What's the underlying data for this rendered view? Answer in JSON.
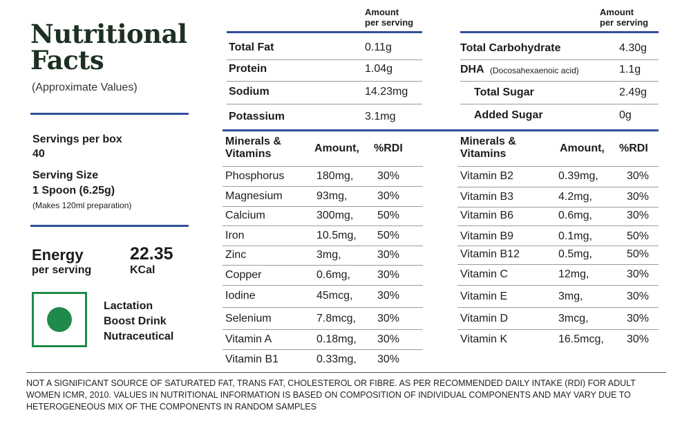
{
  "header": {
    "title_line1": "Nutritional",
    "title_line2": "Facts",
    "subtitle": "(Approximate Values)"
  },
  "servings": {
    "per_box_label": "Servings per box",
    "per_box_value": "40",
    "size_label": "Serving Size",
    "size_value": "1 Spoon (6.25g)",
    "size_note": "(Makes 120ml preparation)"
  },
  "energy": {
    "label": "Energy",
    "sublabel": "per serving",
    "value": "22.35",
    "unit": "KCal"
  },
  "product": {
    "line1": "Lactation",
    "line2": "Boost Drink",
    "line3": "Nutraceutical",
    "veg_color": "#1f8a4c"
  },
  "macros_left": {
    "header_line1": "Amount",
    "header_line2": "per serving",
    "rows": [
      {
        "name": "Total Fat",
        "value": "0.11g"
      },
      {
        "name": "Protein",
        "value": "1.04g"
      },
      {
        "name": "Sodium",
        "value": "14.23mg"
      },
      {
        "name": "Potassium",
        "value": "3.1mg"
      }
    ]
  },
  "macros_right": {
    "header_line1": "Amount",
    "header_line2": "per serving",
    "rows": [
      {
        "name": "Total Carbohydrate",
        "note": "",
        "value": "4.30g"
      },
      {
        "name": "DHA",
        "note": "(Docosahexaenoic acid)",
        "value": "1.1g"
      },
      {
        "name": "Total Sugar",
        "note": "",
        "value": "2.49g"
      },
      {
        "name": "Added Sugar",
        "note": "",
        "value": "0g"
      }
    ]
  },
  "minerals_left": {
    "header_name_line1": "Minerals &",
    "header_name_line2": "Vitamins",
    "header_amount": "Amount,",
    "header_rdi": "%RDI",
    "rows": [
      {
        "name": "Phosphorus",
        "amount": "180mg,",
        "rdi": "30%"
      },
      {
        "name": "Magnesium",
        "amount": "93mg,",
        "rdi": "30%"
      },
      {
        "name": "Calcium",
        "amount": "300mg,",
        "rdi": "50%"
      },
      {
        "name": "Iron",
        "amount": "10.5mg,",
        "rdi": "50%"
      },
      {
        "name": "Zinc",
        "amount": "3mg,",
        "rdi": "30%"
      },
      {
        "name": "Copper",
        "amount": "0.6mg,",
        "rdi": "30%"
      },
      {
        "name": "Iodine",
        "amount": "45mcg,",
        "rdi": "30%"
      },
      {
        "name": "Selenium",
        "amount": "7.8mcg,",
        "rdi": "30%"
      },
      {
        "name": "Vitamin A",
        "amount": "0.18mg,",
        "rdi": "30%"
      },
      {
        "name": "Vitamin B1",
        "amount": "0.33mg,",
        "rdi": "30%"
      }
    ]
  },
  "minerals_right": {
    "header_name_line1": "Minerals &",
    "header_name_line2": "Vitamins",
    "header_amount": "Amount,",
    "header_rdi": "%RDI",
    "rows": [
      {
        "name": "Vitamin B2",
        "amount": "0.39mg,",
        "rdi": "30%"
      },
      {
        "name": "Vitamin B3",
        "amount": "4.2mg,",
        "rdi": "30%"
      },
      {
        "name": "Vitamin B6",
        "amount": "0.6mg,",
        "rdi": "30%"
      },
      {
        "name": "Vitamin B9",
        "amount": "0.1mg,",
        "rdi": "50%"
      },
      {
        "name": "Vitamin B12",
        "amount": "0.5mg,",
        "rdi": "50%"
      },
      {
        "name": "Vitamin C",
        "amount": "12mg,",
        "rdi": "30%"
      },
      {
        "name": "Vitamin E",
        "amount": "3mg,",
        "rdi": "30%"
      },
      {
        "name": "Vitamin D",
        "amount": "3mcg,",
        "rdi": "30%"
      },
      {
        "name": "Vitamin K",
        "amount": "16.5mcg,",
        "rdi": "30%"
      }
    ]
  },
  "footer": {
    "disclaimer": "NOT A SIGNIFICANT SOURCE OF SATURATED FAT, TRANS FAT, CHOLESTEROL OR FIBRE. AS PER RECOMMENDED DAILY INTAKE (RDI) FOR ADULT WOMEN ICMR, 2010. VALUES IN NUTRITIONAL INFORMATION IS BASED ON COMPOSITION OF INDIVIDUAL COMPONENTS AND MAY VARY DUE TO HETEROGENEOUS MIX OF THE COMPONENTS IN RANDOM SAMPLES"
  }
}
